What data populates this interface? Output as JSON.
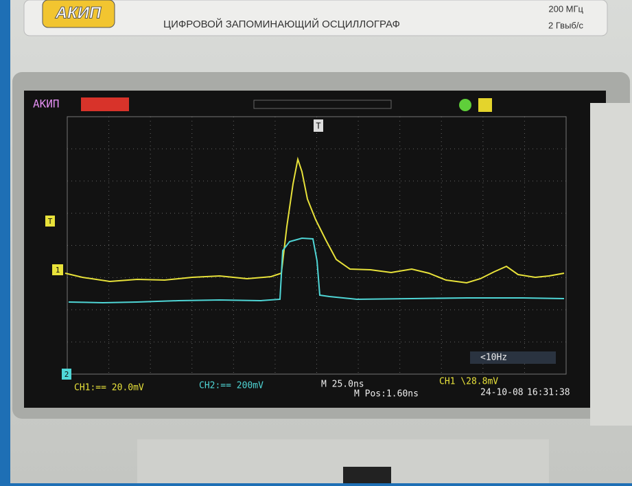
{
  "device": {
    "logo": "АКИП",
    "subtitle": "ЦИФРОВОЙ ЗАПОМИНАЮЩИЙ ОСЦИЛЛОГРАФ",
    "bandwidth": "200 МГц",
    "sample_rate": "2 Гвыб/с"
  },
  "screen": {
    "brand": "АКИП",
    "trigger_marker": "T",
    "trigger_level_marker": "T",
    "ch1_marker": "1",
    "ch2_marker": "2",
    "frequency": "<10Hz",
    "ch1_scale": "CH1:== 20.0mV",
    "ch2_scale": "CH2:== 200mV",
    "timebase": "M 25.0ns",
    "position": "M Pos:1.60ns",
    "trigger": "CH1 \\28.8mV",
    "date": "24-10-08",
    "time": "16:31:38"
  }
}
